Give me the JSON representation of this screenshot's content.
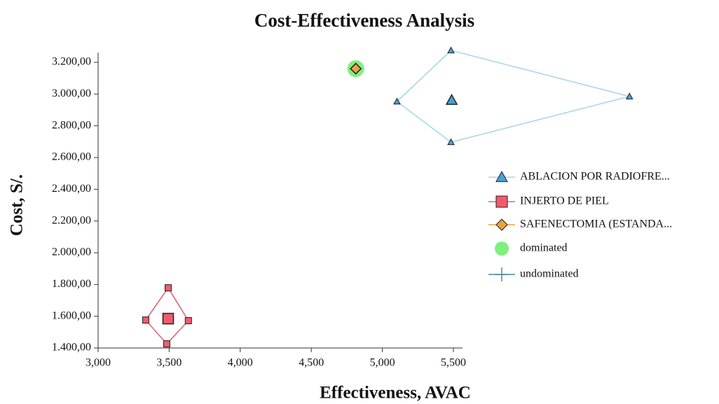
{
  "chart_data": {
    "type": "scatter",
    "title": "Cost-Effectiveness Analysis",
    "x_label": "Effectiveness, AVAC",
    "y_label": "Cost, S/.",
    "xlim": [
      3000,
      5500
    ],
    "ylim": [
      1400,
      3200
    ],
    "xticks": [
      {
        "value": 3000,
        "label": "3,000"
      },
      {
        "value": 3500,
        "label": "3,500"
      },
      {
        "value": 4000,
        "label": "4,000"
      },
      {
        "value": 4500,
        "label": "4,500"
      },
      {
        "value": 5000,
        "label": "5,000"
      },
      {
        "value": 5500,
        "label": "5,500"
      }
    ],
    "yticks": [
      {
        "value": 1400,
        "label": "1.400,00"
      },
      {
        "value": 1600,
        "label": "1.600,00"
      },
      {
        "value": 1800,
        "label": "1.800,00"
      },
      {
        "value": 2000,
        "label": "2.000,00"
      },
      {
        "value": 2200,
        "label": "2.200,00"
      },
      {
        "value": 2400,
        "label": "2.400,00"
      },
      {
        "value": 2600,
        "label": "2.600,00"
      },
      {
        "value": 2800,
        "label": "2.800,00"
      },
      {
        "value": 3000,
        "label": "3.000,00"
      },
      {
        "value": 3200,
        "label": "3.200,00"
      }
    ],
    "series": [
      {
        "name": "ABLACION POR RADIOFRE...",
        "color": "#4a9fd4",
        "outline_color": "#a8d8e8",
        "marker": "triangle",
        "x": [
          5488
        ],
        "values": [
          2962
        ],
        "sample_x": [
          5483,
          6739,
          5483,
          5103
        ],
        "sample_values": [
          3275,
          2985,
          2697,
          2953
        ]
      },
      {
        "name": "INJERTO DE PIEL",
        "color": "#f25b6e",
        "outline_color": "#d86880",
        "marker": "square",
        "x": [
          3493
        ],
        "values": [
          1585
        ],
        "sample_x": [
          3493,
          3635,
          3483,
          3335
        ],
        "sample_values": [
          1779,
          1572,
          1426,
          1576
        ]
      },
      {
        "name": "SAFENECTOMIA (ESTANDA...",
        "color": "#e8a23c",
        "marker": "diamond",
        "x": [
          4813
        ],
        "values": [
          3160
        ]
      },
      {
        "name": "dominated",
        "color": "#7ef07e",
        "marker": "circle",
        "x": [
          4813
        ],
        "values": [
          3160
        ]
      },
      {
        "name": "undominated",
        "color": "#4a8a9a",
        "marker": "plus",
        "x": [],
        "values": []
      }
    ]
  }
}
